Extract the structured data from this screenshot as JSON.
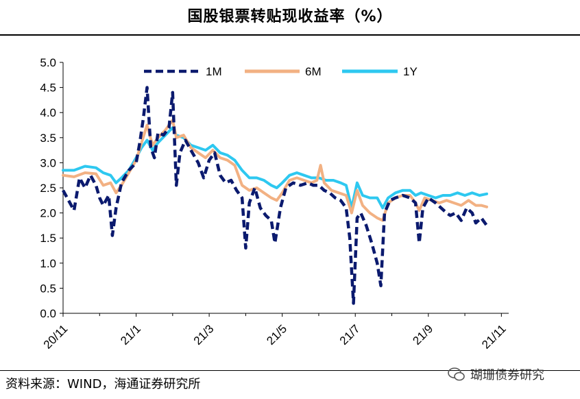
{
  "title": "国股银票转贴现收益率（%）",
  "source": "资料来源：WIND，海通证券研究所",
  "watermark": "瑚珊债券研究",
  "chart_data": {
    "type": "line",
    "title": "国股银票转贴现收益率（%）",
    "xlabel": "",
    "ylabel": "",
    "ylim": [
      0,
      5
    ],
    "xlim": [
      0,
      12.2
    ],
    "yticks": [
      "0.0",
      "0.5",
      "1.0",
      "1.5",
      "2.0",
      "2.5",
      "3.0",
      "3.5",
      "4.0",
      "4.5",
      "5.0"
    ],
    "xticks": [
      {
        "label": "20/11",
        "x": 0
      },
      {
        "label": "21/1",
        "x": 2
      },
      {
        "label": "21/3",
        "x": 4
      },
      {
        "label": "21/5",
        "x": 6
      },
      {
        "label": "21/7",
        "x": 8
      },
      {
        "label": "21/9",
        "x": 10
      },
      {
        "label": "21/11",
        "x": 12
      }
    ],
    "legend_position": "top",
    "series": [
      {
        "name": "1M",
        "color": "#0b1a6e",
        "style": "dashed",
        "points": [
          [
            0,
            2.45
          ],
          [
            0.15,
            2.25
          ],
          [
            0.3,
            2.05
          ],
          [
            0.45,
            2.7
          ],
          [
            0.6,
            2.5
          ],
          [
            0.75,
            2.75
          ],
          [
            0.9,
            2.55
          ],
          [
            1.0,
            2.3
          ],
          [
            1.1,
            2.15
          ],
          [
            1.25,
            2.35
          ],
          [
            1.35,
            1.55
          ],
          [
            1.45,
            2.1
          ],
          [
            1.6,
            2.6
          ],
          [
            1.8,
            2.85
          ],
          [
            2.0,
            3.0
          ],
          [
            2.1,
            3.4
          ],
          [
            2.2,
            3.9
          ],
          [
            2.3,
            4.5
          ],
          [
            2.4,
            3.3
          ],
          [
            2.5,
            3.1
          ],
          [
            2.6,
            3.6
          ],
          [
            2.75,
            3.55
          ],
          [
            2.9,
            3.7
          ],
          [
            3.0,
            4.4
          ],
          [
            3.1,
            2.55
          ],
          [
            3.2,
            3.2
          ],
          [
            3.35,
            3.45
          ],
          [
            3.5,
            3.25
          ],
          [
            3.7,
            3.0
          ],
          [
            3.85,
            2.7
          ],
          [
            4.0,
            3.05
          ],
          [
            4.15,
            3.2
          ],
          [
            4.3,
            2.75
          ],
          [
            4.45,
            2.6
          ],
          [
            4.6,
            2.65
          ],
          [
            4.75,
            2.45
          ],
          [
            4.9,
            2.3
          ],
          [
            5.0,
            1.3
          ],
          [
            5.1,
            2.2
          ],
          [
            5.25,
            2.5
          ],
          [
            5.4,
            2.1
          ],
          [
            5.55,
            1.95
          ],
          [
            5.7,
            1.85
          ],
          [
            5.8,
            1.4
          ],
          [
            5.95,
            2.1
          ],
          [
            6.1,
            2.5
          ],
          [
            6.3,
            2.6
          ],
          [
            6.5,
            2.55
          ],
          [
            6.7,
            2.6
          ],
          [
            6.85,
            2.55
          ],
          [
            7.0,
            2.55
          ],
          [
            7.15,
            2.45
          ],
          [
            7.3,
            2.4
          ],
          [
            7.45,
            2.3
          ],
          [
            7.6,
            2.25
          ],
          [
            7.75,
            2.1
          ],
          [
            7.85,
            1.5
          ],
          [
            7.95,
            0.2
          ],
          [
            8.05,
            1.9
          ],
          [
            8.15,
            2.0
          ],
          [
            8.3,
            1.75
          ],
          [
            8.45,
            1.4
          ],
          [
            8.6,
            1.0
          ],
          [
            8.7,
            0.55
          ],
          [
            8.8,
            2.0
          ],
          [
            8.95,
            2.25
          ],
          [
            9.1,
            2.3
          ],
          [
            9.3,
            2.35
          ],
          [
            9.5,
            2.3
          ],
          [
            9.65,
            2.2
          ],
          [
            9.75,
            1.4
          ],
          [
            9.85,
            2.1
          ],
          [
            10.0,
            2.3
          ],
          [
            10.2,
            2.2
          ],
          [
            10.35,
            2.1
          ],
          [
            10.5,
            2.0
          ],
          [
            10.6,
            1.95
          ],
          [
            10.75,
            2.0
          ],
          [
            10.9,
            1.85
          ],
          [
            11.05,
            2.1
          ],
          [
            11.2,
            2.0
          ],
          [
            11.3,
            1.8
          ],
          [
            11.45,
            1.9
          ],
          [
            11.6,
            1.75
          ]
        ]
      },
      {
        "name": "6M",
        "color": "#f2b183",
        "style": "solid",
        "points": [
          [
            0,
            2.75
          ],
          [
            0.3,
            2.72
          ],
          [
            0.6,
            2.8
          ],
          [
            0.9,
            2.78
          ],
          [
            1.1,
            2.55
          ],
          [
            1.3,
            2.6
          ],
          [
            1.45,
            2.4
          ],
          [
            1.6,
            2.55
          ],
          [
            1.8,
            2.8
          ],
          [
            2.0,
            3.05
          ],
          [
            2.15,
            3.4
          ],
          [
            2.3,
            3.75
          ],
          [
            2.45,
            3.35
          ],
          [
            2.6,
            3.5
          ],
          [
            2.8,
            3.65
          ],
          [
            3.0,
            3.85
          ],
          [
            3.1,
            3.5
          ],
          [
            3.3,
            3.55
          ],
          [
            3.5,
            3.3
          ],
          [
            3.7,
            3.2
          ],
          [
            3.9,
            3.1
          ],
          [
            4.1,
            3.25
          ],
          [
            4.3,
            3.1
          ],
          [
            4.5,
            3.05
          ],
          [
            4.7,
            2.95
          ],
          [
            4.9,
            2.55
          ],
          [
            5.1,
            2.45
          ],
          [
            5.3,
            2.5
          ],
          [
            5.5,
            2.4
          ],
          [
            5.7,
            2.3
          ],
          [
            5.85,
            2.25
          ],
          [
            6.0,
            2.4
          ],
          [
            6.2,
            2.65
          ],
          [
            6.4,
            2.7
          ],
          [
            6.6,
            2.65
          ],
          [
            6.8,
            2.6
          ],
          [
            6.95,
            2.65
          ],
          [
            7.05,
            2.95
          ],
          [
            7.15,
            2.6
          ],
          [
            7.35,
            2.45
          ],
          [
            7.55,
            2.4
          ],
          [
            7.75,
            2.35
          ],
          [
            7.9,
            2.0
          ],
          [
            8.05,
            2.45
          ],
          [
            8.2,
            2.15
          ],
          [
            8.4,
            2.0
          ],
          [
            8.6,
            1.9
          ],
          [
            8.75,
            1.85
          ],
          [
            8.9,
            2.2
          ],
          [
            9.1,
            2.3
          ],
          [
            9.3,
            2.35
          ],
          [
            9.5,
            2.35
          ],
          [
            9.65,
            2.2
          ],
          [
            9.75,
            2.05
          ],
          [
            9.9,
            2.3
          ],
          [
            10.1,
            2.25
          ],
          [
            10.3,
            2.2
          ],
          [
            10.5,
            2.25
          ],
          [
            10.7,
            2.2
          ],
          [
            10.9,
            2.15
          ],
          [
            11.1,
            2.25
          ],
          [
            11.3,
            2.15
          ],
          [
            11.45,
            2.15
          ],
          [
            11.6,
            2.12
          ]
        ]
      },
      {
        "name": "1Y",
        "color": "#2ec8f0",
        "style": "solid",
        "points": [
          [
            0,
            2.85
          ],
          [
            0.3,
            2.85
          ],
          [
            0.6,
            2.93
          ],
          [
            0.9,
            2.9
          ],
          [
            1.1,
            2.8
          ],
          [
            1.3,
            2.75
          ],
          [
            1.45,
            2.6
          ],
          [
            1.6,
            2.7
          ],
          [
            1.8,
            2.85
          ],
          [
            2.0,
            3.1
          ],
          [
            2.15,
            3.3
          ],
          [
            2.3,
            3.45
          ],
          [
            2.45,
            3.25
          ],
          [
            2.6,
            3.4
          ],
          [
            2.8,
            3.55
          ],
          [
            3.0,
            3.7
          ],
          [
            3.1,
            3.55
          ],
          [
            3.3,
            3.5
          ],
          [
            3.5,
            3.35
          ],
          [
            3.7,
            3.3
          ],
          [
            3.9,
            3.25
          ],
          [
            4.1,
            3.35
          ],
          [
            4.3,
            3.2
          ],
          [
            4.5,
            3.15
          ],
          [
            4.7,
            3.05
          ],
          [
            4.9,
            2.85
          ],
          [
            5.1,
            2.7
          ],
          [
            5.3,
            2.7
          ],
          [
            5.5,
            2.65
          ],
          [
            5.7,
            2.55
          ],
          [
            5.85,
            2.5
          ],
          [
            6.0,
            2.6
          ],
          [
            6.2,
            2.75
          ],
          [
            6.4,
            2.8
          ],
          [
            6.6,
            2.75
          ],
          [
            6.8,
            2.7
          ],
          [
            7.0,
            2.7
          ],
          [
            7.2,
            2.65
          ],
          [
            7.4,
            2.65
          ],
          [
            7.6,
            2.6
          ],
          [
            7.75,
            2.55
          ],
          [
            7.9,
            2.1
          ],
          [
            8.05,
            2.6
          ],
          [
            8.2,
            2.35
          ],
          [
            8.4,
            2.3
          ],
          [
            8.6,
            2.3
          ],
          [
            8.75,
            2.1
          ],
          [
            8.9,
            2.3
          ],
          [
            9.1,
            2.4
          ],
          [
            9.3,
            2.45
          ],
          [
            9.5,
            2.45
          ],
          [
            9.65,
            2.35
          ],
          [
            9.8,
            2.4
          ],
          [
            10.0,
            2.35
          ],
          [
            10.2,
            2.3
          ],
          [
            10.4,
            2.35
          ],
          [
            10.6,
            2.35
          ],
          [
            10.8,
            2.4
          ],
          [
            11.0,
            2.35
          ],
          [
            11.2,
            2.4
          ],
          [
            11.4,
            2.35
          ],
          [
            11.6,
            2.38
          ]
        ]
      }
    ]
  }
}
